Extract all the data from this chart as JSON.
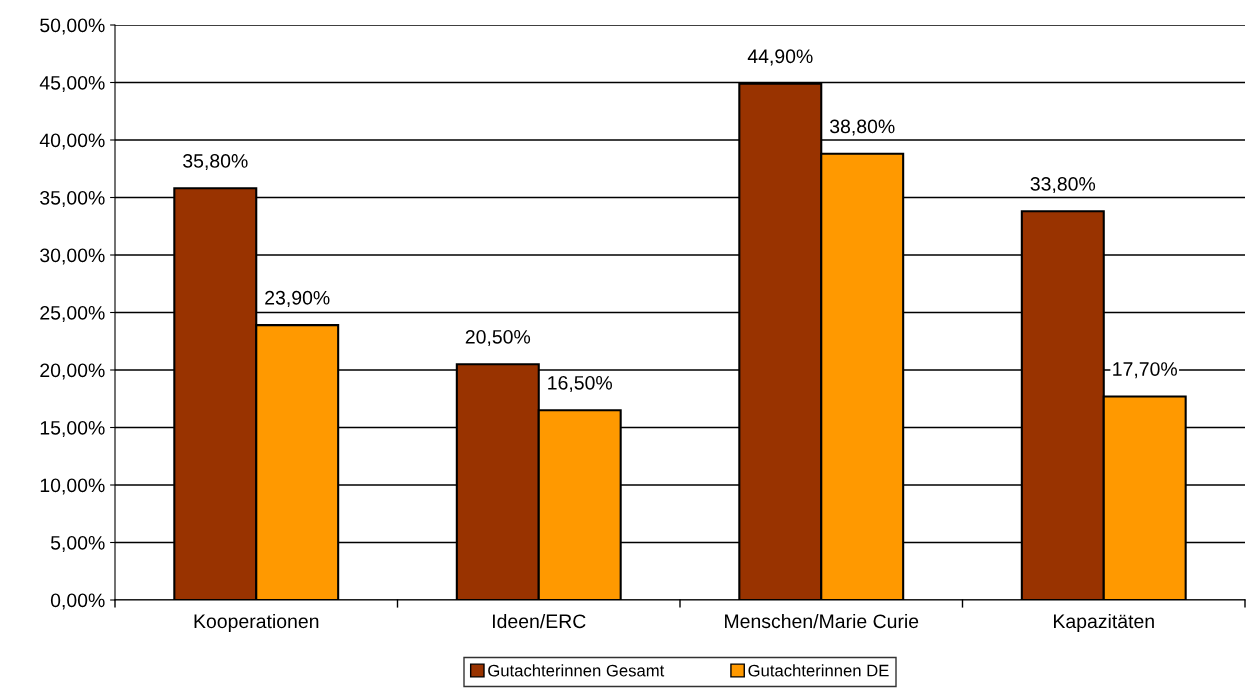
{
  "chart_data": {
    "type": "bar",
    "categories": [
      "Kooperationen",
      "Ideen/ERC",
      "Menschen/Marie Curie",
      "Kapazitäten"
    ],
    "series": [
      {
        "name": "Gutachterinnen Gesamt",
        "color": "#993300",
        "values": [
          35.8,
          20.5,
          44.9,
          33.8
        ],
        "value_labels": [
          "35,80%",
          "20,50%",
          "44,90%",
          "33,80%"
        ]
      },
      {
        "name": "Gutachterinnen DE",
        "color": "#ff9900",
        "values": [
          23.9,
          16.5,
          38.8,
          17.7
        ],
        "value_labels": [
          "23,90%",
          "16,50%",
          "38,80%",
          "17,70%"
        ]
      }
    ],
    "ylim": [
      0,
      50
    ],
    "yticks": [
      {
        "value": 0,
        "label": "0,00%"
      },
      {
        "value": 5,
        "label": "5,00%"
      },
      {
        "value": 10,
        "label": "10,00%"
      },
      {
        "value": 15,
        "label": "15,00%"
      },
      {
        "value": 20,
        "label": "20,00%"
      },
      {
        "value": 25,
        "label": "25,00%"
      },
      {
        "value": 30,
        "label": "30,00%"
      },
      {
        "value": 35,
        "label": "35,00%"
      },
      {
        "value": 40,
        "label": "40,00%"
      },
      {
        "value": 45,
        "label": "45,00%"
      },
      {
        "value": 50,
        "label": "50,00%"
      }
    ],
    "grid": "y",
    "legend": "bottom"
  }
}
